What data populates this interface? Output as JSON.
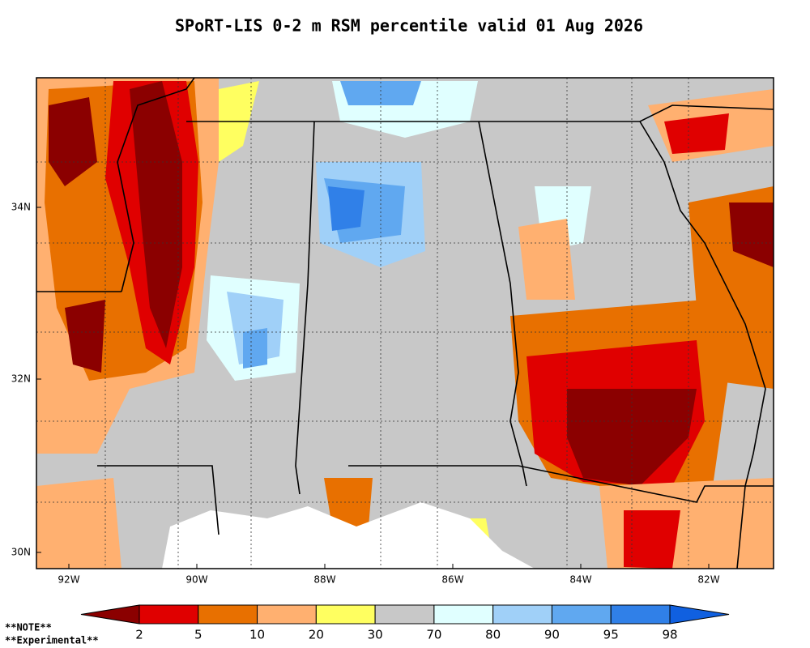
{
  "title": "SPoRT-LIS 0-2 m RSM percentile valid 01 Aug 2026",
  "lon_labels": [
    "92W",
    "90W",
    "88W",
    "86W",
    "84W",
    "82W"
  ],
  "lat_labels": [
    "34N",
    "32N",
    "30N"
  ],
  "colorbar": {
    "labels": [
      "2",
      "5",
      "10",
      "20",
      "30",
      "70",
      "80",
      "90",
      "95",
      "98"
    ],
    "colors": [
      "#8b0000",
      "#e00000",
      "#e87000",
      "#ffb070",
      "#ffff60",
      "#c8c8c8",
      "#e0ffff",
      "#a0d0f8",
      "#60a8f0",
      "#3080e8",
      "#1060e0"
    ]
  },
  "notes": [
    "**NOTE**",
    "**Experimental**"
  ]
}
